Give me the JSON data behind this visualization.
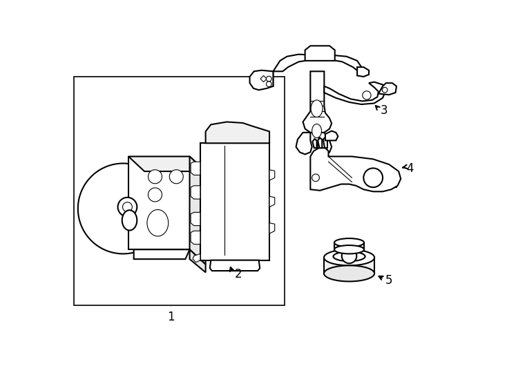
{
  "background_color": "#ffffff",
  "line_color": "#000000",
  "lw": 1.5,
  "lw_thin": 0.8,
  "figure_width": 7.34,
  "figure_height": 5.4,
  "dpi": 100
}
